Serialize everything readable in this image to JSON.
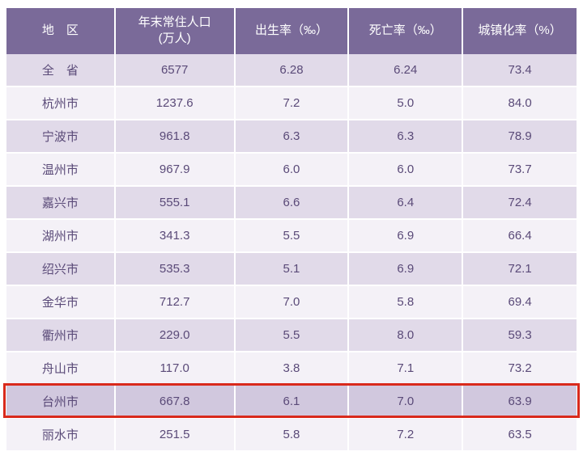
{
  "table": {
    "header_bg": "#7a6a99",
    "header_fg": "#ffffff",
    "odd_row_bg": "#e1dae9",
    "even_row_bg": "#f4f1f7",
    "highlight_row_bg": "#d1c8de",
    "highlight_border_color": "#d92a1c",
    "text_color": "#5a4a78",
    "font_size_pt": 15,
    "columns": [
      {
        "label": "地　区",
        "width_pct": 19
      },
      {
        "label": "年末常住人口\n(万人)",
        "width_pct": 21
      },
      {
        "label": "出生率（‰）",
        "width_pct": 20
      },
      {
        "label": "死亡率（‰）",
        "width_pct": 20
      },
      {
        "label": "城镇化率（%）",
        "width_pct": 20
      }
    ],
    "rows": [
      {
        "region": "全　省",
        "population": "6577",
        "birth": "6.28",
        "death": "6.24",
        "urban": "73.4",
        "spaced": true
      },
      {
        "region": "杭州市",
        "population": "1237.6",
        "birth": "7.2",
        "death": "5.0",
        "urban": "84.0"
      },
      {
        "region": "宁波市",
        "population": "961.8",
        "birth": "6.3",
        "death": "6.3",
        "urban": "78.9"
      },
      {
        "region": "温州市",
        "population": "967.9",
        "birth": "6.0",
        "death": "6.0",
        "urban": "73.7"
      },
      {
        "region": "嘉兴市",
        "population": "555.1",
        "birth": "6.6",
        "death": "6.4",
        "urban": "72.4"
      },
      {
        "region": "湖州市",
        "population": "341.3",
        "birth": "5.5",
        "death": "6.9",
        "urban": "66.4"
      },
      {
        "region": "绍兴市",
        "population": "535.3",
        "birth": "5.1",
        "death": "6.9",
        "urban": "72.1"
      },
      {
        "region": "金华市",
        "population": "712.7",
        "birth": "7.0",
        "death": "5.8",
        "urban": "69.4"
      },
      {
        "region": "衢州市",
        "population": "229.0",
        "birth": "5.5",
        "death": "8.0",
        "urban": "59.3"
      },
      {
        "region": "舟山市",
        "population": "117.0",
        "birth": "3.8",
        "death": "7.1",
        "urban": "73.2"
      },
      {
        "region": "台州市",
        "population": "667.8",
        "birth": "6.1",
        "death": "7.0",
        "urban": "63.9",
        "highlight": true
      },
      {
        "region": "丽水市",
        "population": "251.5",
        "birth": "5.8",
        "death": "7.2",
        "urban": "63.5"
      }
    ]
  }
}
